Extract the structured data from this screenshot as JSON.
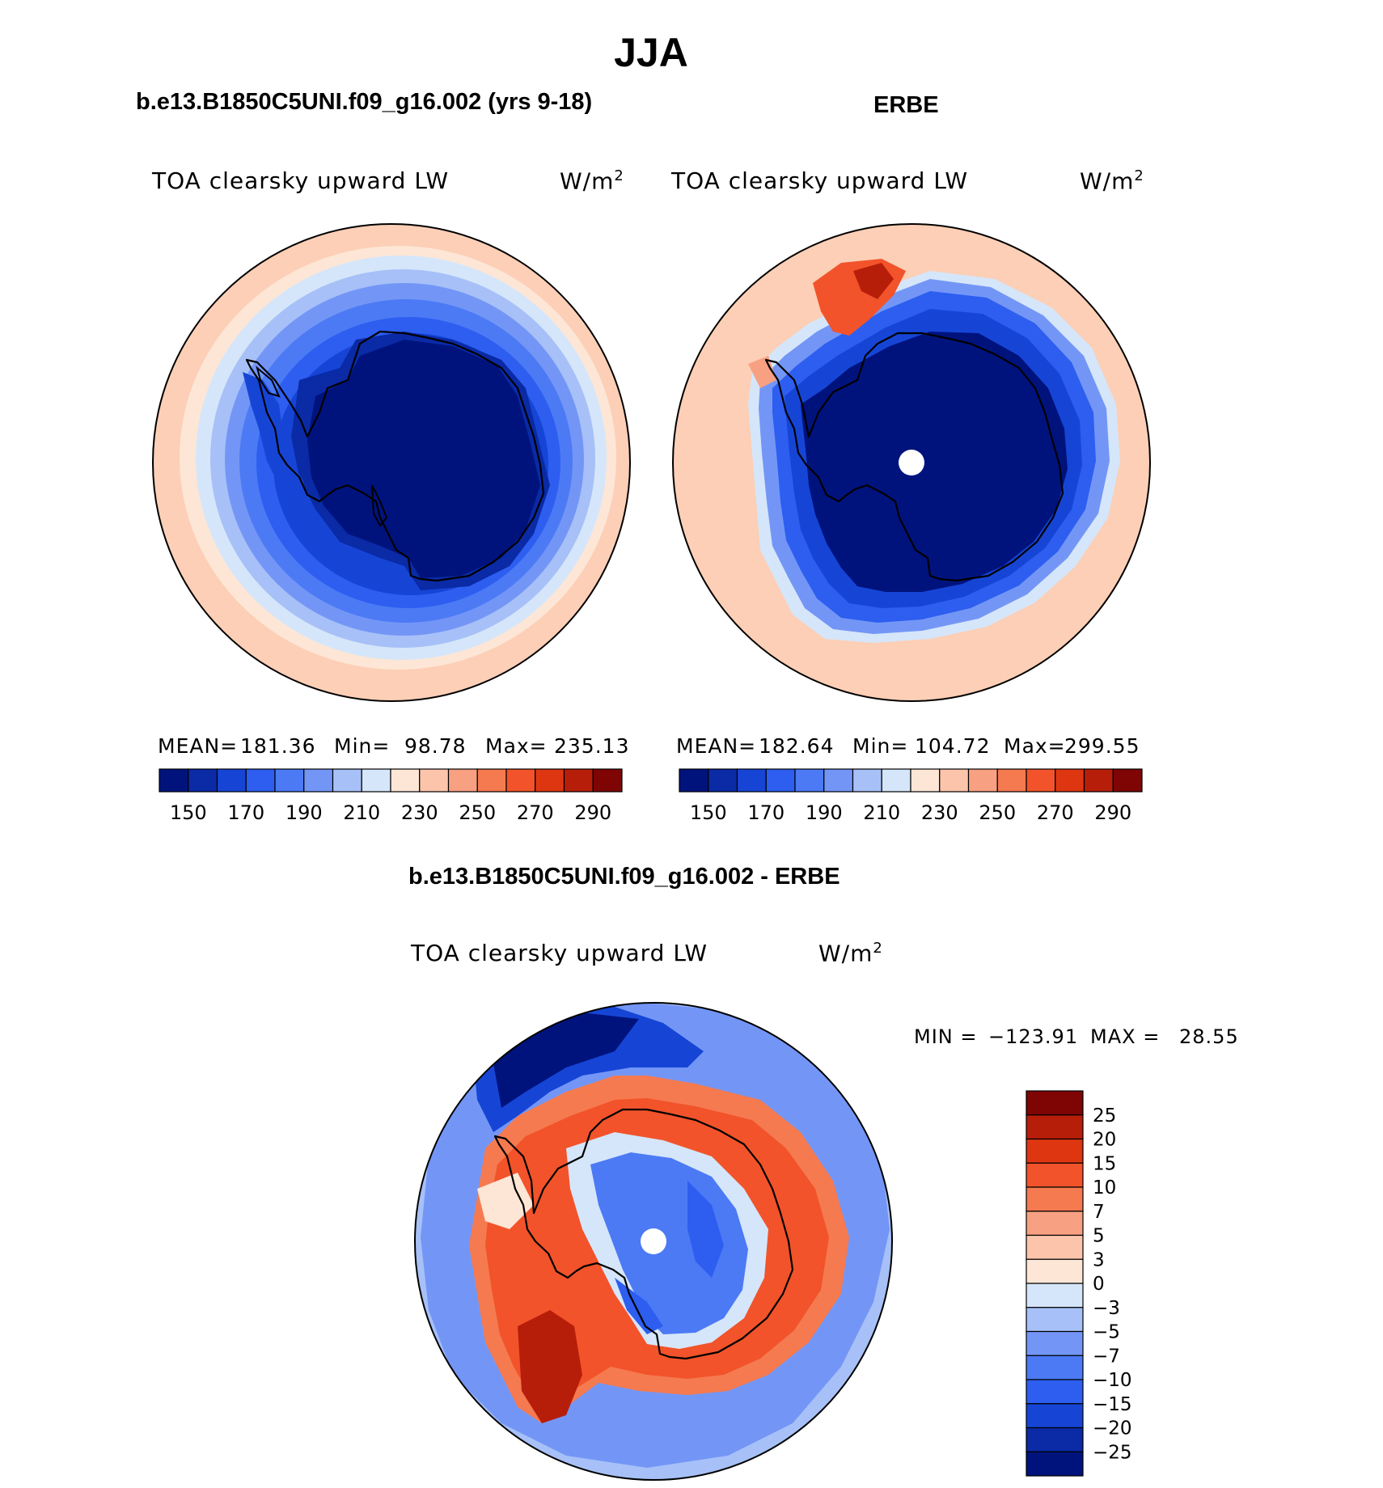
{
  "page_title": "JJA",
  "panels": [
    {
      "case_label": "b.e13.B1850C5UNI.f09_g16.002 (yrs 9-18)",
      "variable": "TOA clearsky upward LW",
      "units": "W/m",
      "units_exp": "2",
      "stats": {
        "mean_label": "MEAN=",
        "mean": "181.36",
        "min_label": "Min=",
        "min": "98.78",
        "max_label": "Max=",
        "max": "235.13"
      }
    },
    {
      "case_label": "ERBE",
      "variable": "TOA clearsky upward LW",
      "units": "W/m",
      "units_exp": "2",
      "stats": {
        "mean_label": "MEAN=",
        "mean": "182.64",
        "min_label": "Min=",
        "min": "104.72",
        "max_label": "Max=",
        "max": "299.55"
      }
    },
    {
      "case_label": "b.e13.B1850C5UNI.f09_g16.002 - ERBE",
      "variable": "TOA clearsky upward LW",
      "units": "W/m",
      "units_exp": "2",
      "stats": {
        "min_label": "MIN =",
        "min": "−123.91",
        "max_label": "MAX =",
        "max": "28.55"
      }
    }
  ],
  "abs_colorbar": {
    "colors": [
      "#00137d",
      "#0a2aa6",
      "#1645d6",
      "#2d5ef0",
      "#4c7af5",
      "#7396f6",
      "#a7c0f7",
      "#d5e6fa",
      "#fde6d6",
      "#fcc5ab",
      "#f8a082",
      "#f57a50",
      "#f2532a",
      "#df3612",
      "#b71e0a",
      "#7f0505"
    ],
    "labels": [
      "150",
      "170",
      "190",
      "210",
      "230",
      "250",
      "270",
      "290"
    ]
  },
  "diff_colorbar": {
    "colors": [
      "#7f0505",
      "#b71e0a",
      "#df3612",
      "#f2532a",
      "#f57a50",
      "#f8a082",
      "#fcc5ab",
      "#fde6d6",
      "#d5e6fa",
      "#a7c0f7",
      "#7396f6",
      "#4c7af5",
      "#2d5ef0",
      "#1645d6",
      "#0a2aa6",
      "#00137d"
    ],
    "labels": [
      "25",
      "20",
      "15",
      "10",
      "7",
      "5",
      "3",
      "0",
      "−3",
      "−5",
      "−7",
      "−10",
      "−15",
      "−20",
      "−25"
    ]
  }
}
